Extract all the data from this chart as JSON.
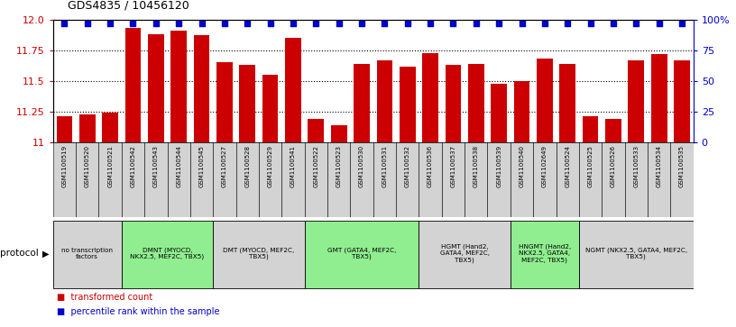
{
  "title": "GDS4835 / 10456120",
  "samples": [
    "GSM1100519",
    "GSM1100520",
    "GSM1100521",
    "GSM1100542",
    "GSM1100543",
    "GSM1100544",
    "GSM1100545",
    "GSM1100527",
    "GSM1100528",
    "GSM1100529",
    "GSM1100541",
    "GSM1100522",
    "GSM1100523",
    "GSM1100530",
    "GSM1100531",
    "GSM1100532",
    "GSM1100536",
    "GSM1100537",
    "GSM1100538",
    "GSM1100539",
    "GSM1100540",
    "GSM1102649",
    "GSM1100524",
    "GSM1100525",
    "GSM1100526",
    "GSM1100533",
    "GSM1100534",
    "GSM1100535"
  ],
  "values": [
    11.21,
    11.23,
    11.24,
    11.93,
    11.88,
    11.91,
    11.87,
    11.65,
    11.63,
    11.55,
    11.85,
    11.19,
    11.14,
    11.64,
    11.67,
    11.62,
    11.73,
    11.63,
    11.64,
    11.48,
    11.5,
    11.68,
    11.64,
    11.21,
    11.19,
    11.67,
    11.72,
    11.67
  ],
  "percentiles": [
    97,
    97,
    97,
    97,
    97,
    97,
    97,
    97,
    97,
    97,
    97,
    97,
    97,
    97,
    97,
    97,
    97,
    97,
    97,
    97,
    97,
    97,
    97,
    97,
    97,
    97,
    97,
    97
  ],
  "groups": [
    {
      "label": "no transcription\nfactors",
      "start": 0,
      "end": 3,
      "color": "#d3d3d3"
    },
    {
      "label": "DMNT (MYOCD,\nNKX2.5, MEF2C, TBX5)",
      "start": 3,
      "end": 7,
      "color": "#90ee90"
    },
    {
      "label": "DMT (MYOCD, MEF2C,\nTBX5)",
      "start": 7,
      "end": 11,
      "color": "#d3d3d3"
    },
    {
      "label": "GMT (GATA4, MEF2C,\nTBX5)",
      "start": 11,
      "end": 16,
      "color": "#90ee90"
    },
    {
      "label": "HGMT (Hand2,\nGATA4, MEF2C,\nTBX5)",
      "start": 16,
      "end": 20,
      "color": "#d3d3d3"
    },
    {
      "label": "HNGMT (Hand2,\nNKX2.5, GATA4,\nMEF2C, TBX5)",
      "start": 20,
      "end": 23,
      "color": "#90ee90"
    },
    {
      "label": "NGMT (NKX2.5, GATA4, MEF2C,\nTBX5)",
      "start": 23,
      "end": 28,
      "color": "#d3d3d3"
    }
  ],
  "ylim": [
    11.0,
    12.0
  ],
  "yticks": [
    11.0,
    11.25,
    11.5,
    11.75,
    12.0
  ],
  "right_yticks": [
    0,
    25,
    50,
    75,
    100
  ],
  "bar_color": "#cc0000",
  "dot_color": "#0000cc",
  "bg_color": "#ffffff",
  "sample_box_color": "#d3d3d3"
}
